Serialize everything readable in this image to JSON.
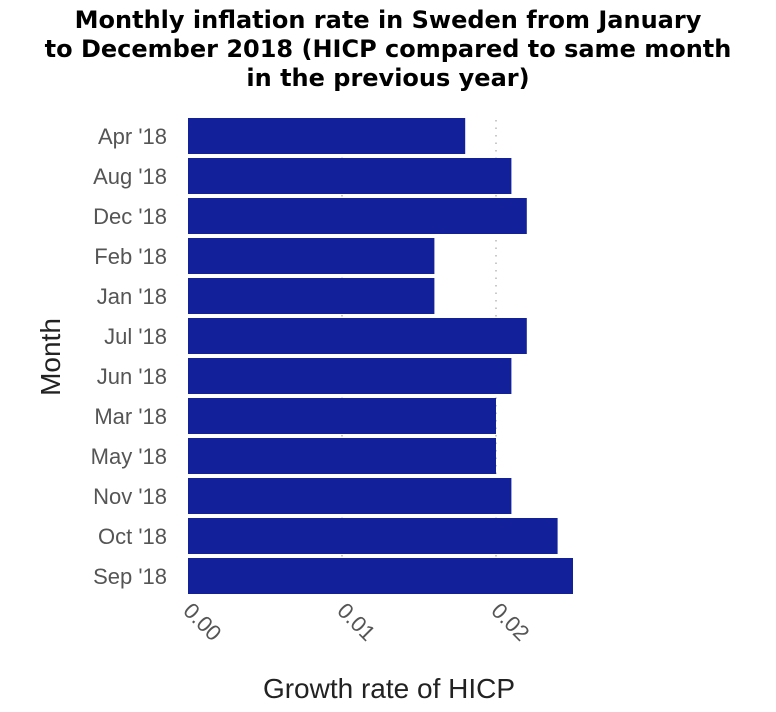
{
  "chart_data": {
    "type": "bar",
    "orientation": "horizontal",
    "title_lines": [
      "Monthly inflation rate in Sweden from January",
      "to December 2018 (HICP compared to same month",
      "in the previous year)"
    ],
    "xlabel": "Growth rate of HICP",
    "ylabel": "Month",
    "categories": [
      "Apr '18",
      "Aug '18",
      "Dec '18",
      "Feb '18",
      "Jan '18",
      "Jul '18",
      "Jun '18",
      "Mar '18",
      "May '18",
      "Nov '18",
      "Oct '18",
      "Sep '18"
    ],
    "values": [
      0.018,
      0.021,
      0.022,
      0.016,
      0.016,
      0.022,
      0.021,
      0.02,
      0.02,
      0.021,
      0.024,
      0.025
    ],
    "xlim": [
      0,
      0.025
    ],
    "x_ticks": [
      0,
      0.01,
      0.02
    ],
    "x_tick_labels": [
      "0.00",
      "0.01",
      "0.02"
    ],
    "bar_color": "#12219a",
    "grid": true
  }
}
